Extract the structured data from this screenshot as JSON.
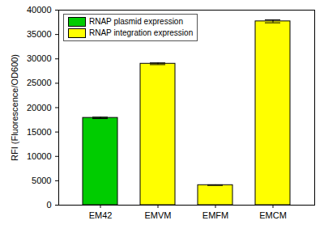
{
  "chart_data": {
    "type": "bar",
    "categories": [
      "EM42",
      "EMVM",
      "EMFM",
      "EMCM"
    ],
    "series": [
      {
        "name": "RNAP plasmid expression",
        "color": "#00cc00",
        "values": [
          17900,
          null,
          null,
          null
        ],
        "errors": [
          150,
          null,
          null,
          null
        ]
      },
      {
        "name": "RNAP integration expression",
        "color": "#ffff00",
        "values": [
          null,
          29000,
          4100,
          37700
        ],
        "errors": [
          null,
          180,
          60,
          300
        ]
      }
    ],
    "y_label": "RFI (Fluorescence/OD600)",
    "ylim": [
      0,
      40000
    ],
    "yticks": [
      0,
      5000,
      10000,
      15000,
      20000,
      25000,
      30000,
      35000,
      40000
    ],
    "legend": "upper left"
  }
}
